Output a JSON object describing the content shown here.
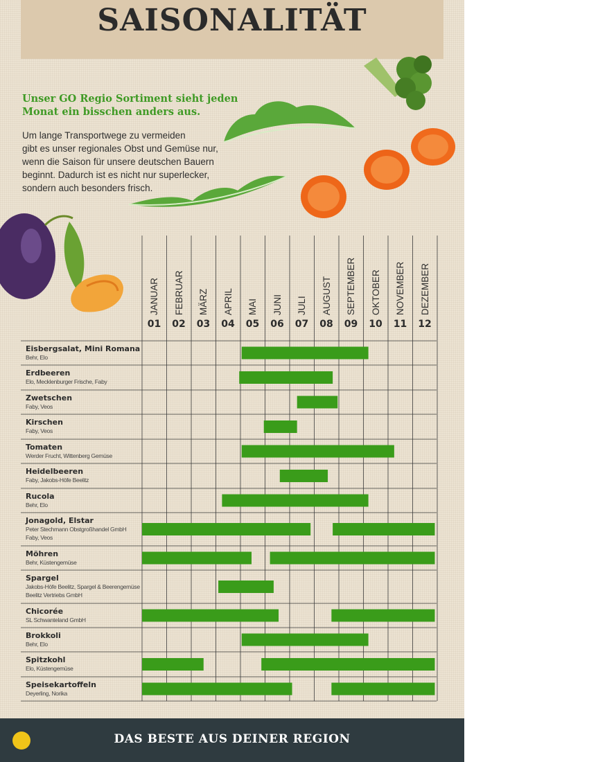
{
  "title": "SAISONALITÄT",
  "lead": "Unser GO Regio Sortiment sieht jeden Monat ein bisschen anders aus.",
  "body_lines": [
    "Um lange Transportwege zu vermeiden",
    "gibt es unser regionales Obst und Gemüse nur,",
    "wenn die Saison für unsere deutschen Bauern",
    "beginnt. Dadurch ist es nicht nur superlecker,",
    "sondern auch besonders frisch."
  ],
  "months": [
    {
      "label": "JANUAR",
      "num": "01"
    },
    {
      "label": "FEBRUAR",
      "num": "02"
    },
    {
      "label": "MÄRZ",
      "num": "03"
    },
    {
      "label": "APRIL",
      "num": "04"
    },
    {
      "label": "MAI",
      "num": "05"
    },
    {
      "label": "JUNI",
      "num": "06"
    },
    {
      "label": "JULI",
      "num": "07"
    },
    {
      "label": "AUGUST",
      "num": "08"
    },
    {
      "label": "SEPTEMBER",
      "num": "09"
    },
    {
      "label": "OKTOBER",
      "num": "10"
    },
    {
      "label": "NOVEMBER",
      "num": "11"
    },
    {
      "label": "DEZEMBER",
      "num": "12"
    }
  ],
  "rows": [
    {
      "name": "Eisbergsalat, Mini Romana",
      "suppliers": [
        "Behr, Elo"
      ],
      "ranges": [
        [
          5.05,
          10.2
        ]
      ]
    },
    {
      "name": "Erdbeeren",
      "suppliers": [
        "Elo, Mecklenburger Frische, Faby"
      ],
      "ranges": [
        [
          4.95,
          8.75
        ]
      ]
    },
    {
      "name": "Zwetschen",
      "suppliers": [
        "Faby, Veos"
      ],
      "ranges": [
        [
          7.3,
          8.95
        ]
      ]
    },
    {
      "name": "Kirschen",
      "suppliers": [
        "Faby, Veos"
      ],
      "ranges": [
        [
          5.95,
          7.3
        ]
      ]
    },
    {
      "name": "Tomaten",
      "suppliers": [
        "Werder Frucht, Wittenberg Gemüse"
      ],
      "ranges": [
        [
          5.05,
          11.25
        ]
      ]
    },
    {
      "name": "Heidelbeeren",
      "suppliers": [
        "Faby, Jakobs-Höfe Beelitz"
      ],
      "ranges": [
        [
          6.6,
          8.55
        ]
      ]
    },
    {
      "name": "Rucola",
      "suppliers": [
        "Behr, Elo"
      ],
      "ranges": [
        [
          4.25,
          10.2
        ]
      ]
    },
    {
      "name": "Jonagold, Elstar",
      "suppliers": [
        "Peter Stechmann Obstgroßhandel GmbH",
        "Faby, Veos"
      ],
      "ranges": [
        [
          1.0,
          7.85
        ],
        [
          8.75,
          12.9
        ]
      ]
    },
    {
      "name": "Möhren",
      "suppliers": [
        "Behr, Küstengemüse"
      ],
      "ranges": [
        [
          1.0,
          5.45
        ],
        [
          6.2,
          12.9
        ]
      ]
    },
    {
      "name": "Spargel",
      "suppliers": [
        "Jakobs-Höfe Beelitz, Spargel & Beerengemüse",
        "Beelitz Vertriebs GmbH"
      ],
      "ranges": [
        [
          4.1,
          6.35
        ]
      ]
    },
    {
      "name": "Chicorée",
      "suppliers": [
        "SL Schwanteland GmbH"
      ],
      "ranges": [
        [
          1.0,
          6.55
        ],
        [
          8.7,
          12.9
        ]
      ]
    },
    {
      "name": "Brokkoli",
      "suppliers": [
        "Behr, Elo"
      ],
      "ranges": [
        [
          5.05,
          10.2
        ]
      ]
    },
    {
      "name": "Spitzkohl",
      "suppliers": [
        "Elo, Küstengemüse"
      ],
      "ranges": [
        [
          1.0,
          3.5
        ],
        [
          5.85,
          12.9
        ]
      ]
    },
    {
      "name": "Speisekartoffeln",
      "suppliers": [
        "Deyerling, Norika"
      ],
      "ranges": [
        [
          1.0,
          7.1
        ],
        [
          8.7,
          12.9
        ]
      ]
    }
  ],
  "footer": "DAS BESTE AUS DEINER REGION",
  "colors": {
    "bar": "#3a9c1a",
    "lead": "#3f9a25",
    "footer_bg": "#2f3b40"
  }
}
